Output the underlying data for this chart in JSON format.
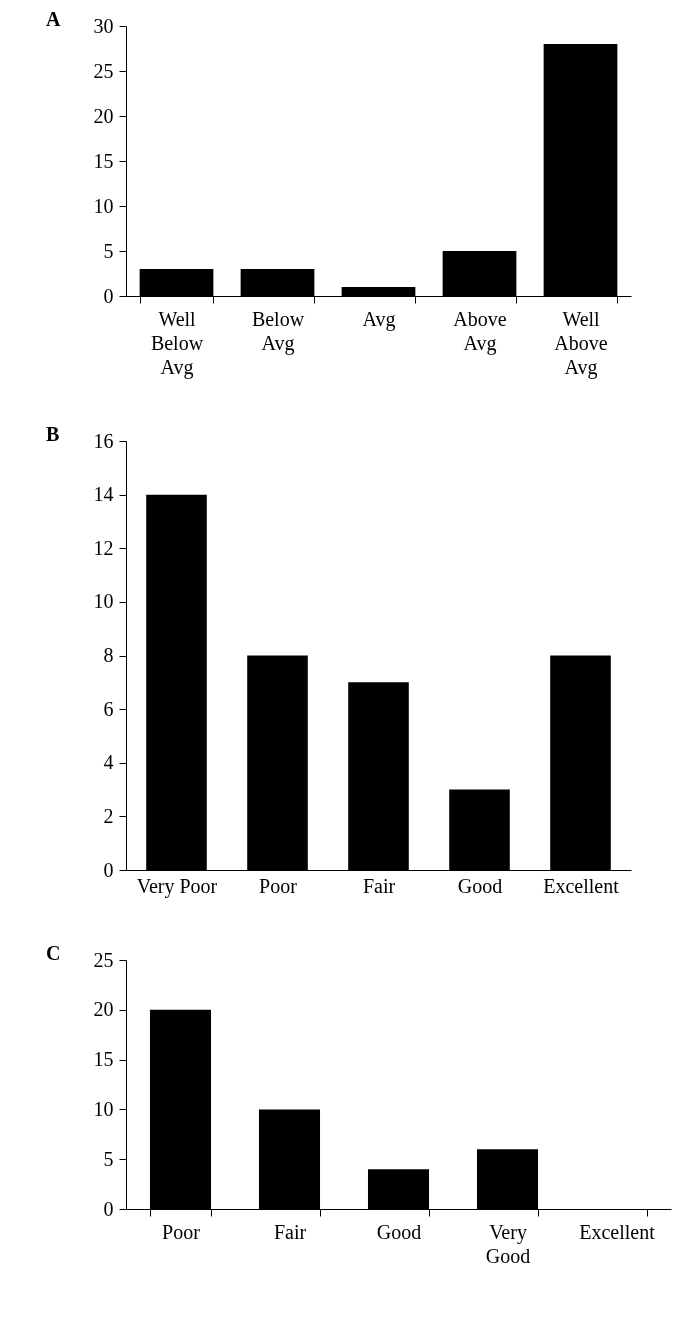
{
  "chart_data": [
    {
      "type": "bar",
      "title": "A",
      "categories": [
        "Well Below Avg",
        "Below Avg",
        "Avg",
        "Above Avg",
        "Well Above Avg"
      ],
      "values": [
        3,
        3,
        1,
        5,
        28
      ],
      "color": "#000000",
      "ylim": [
        0,
        30
      ],
      "yticks": [
        0,
        5,
        10,
        15,
        20,
        25,
        30
      ],
      "grid": false
    },
    {
      "type": "bar",
      "title": "B",
      "categories": [
        "Very Poor",
        "Poor",
        "Fair",
        "Good",
        "Excellent"
      ],
      "values": [
        14,
        8,
        7,
        3,
        8
      ],
      "color": "#000000",
      "ylim": [
        0,
        16
      ],
      "yticks": [
        0,
        2,
        4,
        6,
        8,
        10,
        12,
        14,
        16
      ],
      "grid": false
    },
    {
      "type": "bar",
      "title": "C",
      "categories": [
        "Poor",
        "Fair",
        "Good",
        "Very Good",
        "Excellent"
      ],
      "values": [
        20,
        10,
        4,
        6,
        0
      ],
      "color": "#000000",
      "ylim": [
        0,
        25
      ],
      "yticks": [
        0,
        5,
        10,
        15,
        20,
        25
      ],
      "grid": false
    }
  ]
}
